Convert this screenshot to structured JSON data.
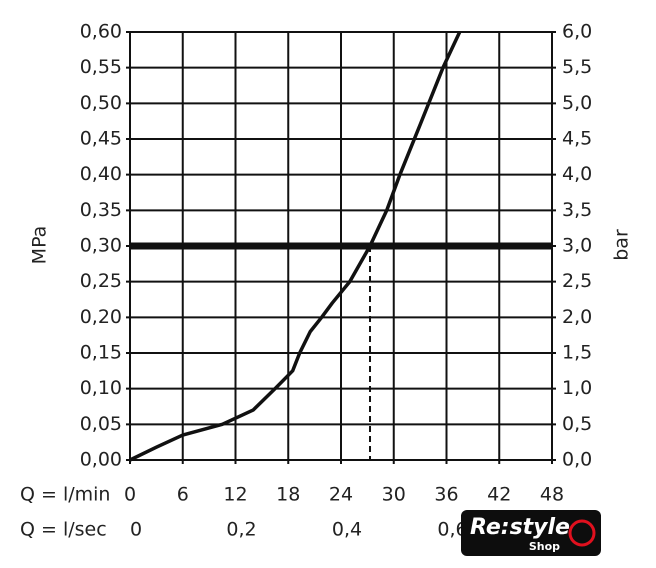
{
  "chart_data": {
    "type": "line",
    "x": [
      0,
      3,
      6,
      10.5,
      14,
      16.5,
      18.5,
      19.3,
      20.5,
      21.8,
      23,
      25,
      27.3,
      29.2,
      30.7,
      33,
      35.6,
      37.5
    ],
    "values": [
      0,
      0.018,
      0.035,
      0.05,
      0.07,
      0.1,
      0.125,
      0.15,
      0.18,
      0.2,
      0.22,
      0.25,
      0.3,
      0.35,
      0.4,
      0.47,
      0.55,
      0.6
    ],
    "color": "#111",
    "xlabel": "Q = l/min",
    "ylabel": "MPa",
    "y2label": "bar",
    "x2label": "Q = l/sec",
    "xlim": [
      0,
      48
    ],
    "xticks": [
      0,
      6,
      12,
      18,
      24,
      30,
      36,
      42,
      48
    ],
    "x2lim": [
      0,
      0.8
    ],
    "x2ticks": [
      0,
      {
        "value": 0.2,
        "label": "0,2"
      },
      {
        "value": 0.4,
        "label": "0,4"
      },
      {
        "value": 0.6,
        "label": "0,6"
      }
    ],
    "ylim": [
      0,
      0.6
    ],
    "yticks": [
      {
        "value": 0,
        "label": "0,00"
      },
      {
        "value": 0.05,
        "label": "0,05"
      },
      {
        "value": 0.1,
        "label": "0,10"
      },
      {
        "value": 0.15,
        "label": "0,15"
      },
      {
        "value": 0.2,
        "label": "0,20"
      },
      {
        "value": 0.25,
        "label": "0,25"
      },
      {
        "value": 0.3,
        "label": "0,30"
      },
      {
        "value": 0.35,
        "label": "0,35"
      },
      {
        "value": 0.4,
        "label": "0,40"
      },
      {
        "value": 0.45,
        "label": "0,45"
      },
      {
        "value": 0.5,
        "label": "0,50"
      },
      {
        "value": 0.55,
        "label": "0,55"
      },
      {
        "value": 0.6,
        "label": "0,60"
      }
    ],
    "y2lim": [
      0,
      6
    ],
    "y2ticks": [
      {
        "value": 0,
        "label": "0,0"
      },
      {
        "value": 0.5,
        "label": "0,5"
      },
      {
        "value": 1,
        "label": "1,0"
      },
      {
        "value": 1.5,
        "label": "1,5"
      },
      {
        "value": 2,
        "label": "2,0"
      },
      {
        "value": 2.5,
        "label": "2,5"
      },
      {
        "value": 3,
        "label": "3,0"
      },
      {
        "value": 3.5,
        "label": "3,5"
      },
      {
        "value": 4,
        "label": "4,0"
      },
      {
        "value": 4.5,
        "label": "4,5"
      },
      {
        "value": 5,
        "label": "5,0"
      },
      {
        "value": 5.5,
        "label": "5,5"
      },
      {
        "value": 6,
        "label": "6,0"
      }
    ],
    "reference_y": 0.3,
    "reference_x": 27.3,
    "grid": true
  },
  "logo": {
    "title": "Re:style",
    "subtitle": "Shop"
  }
}
